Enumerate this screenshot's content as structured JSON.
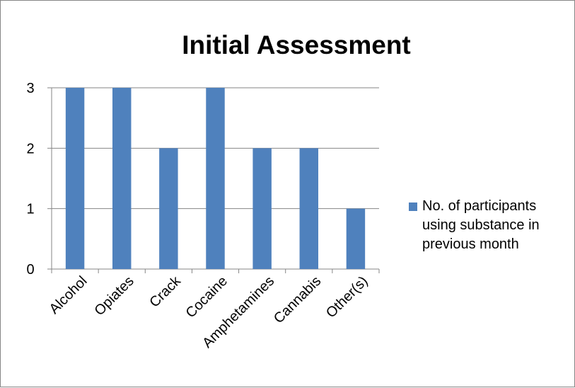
{
  "chart_data": {
    "type": "bar",
    "title": "Initial Assessment",
    "categories": [
      "Alcohol",
      "Opiates",
      "Crack",
      "Cocaine",
      "Amphetamines",
      "Cannabis",
      "Other(s)"
    ],
    "series": [
      {
        "name": "No. of participants using substance in previous month",
        "values": [
          3,
          3,
          2,
          3,
          2,
          2,
          1
        ],
        "color": "#4f81bd"
      }
    ],
    "ylim": [
      0,
      3
    ],
    "yticks": [
      "0",
      "1",
      "2",
      "3"
    ],
    "grid": true,
    "legend_position": "right",
    "xlabel": "",
    "ylabel": ""
  }
}
